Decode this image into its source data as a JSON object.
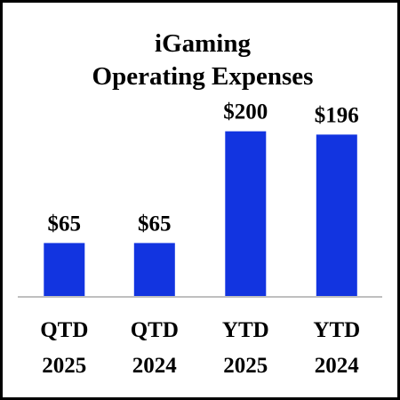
{
  "chart_data": {
    "type": "bar",
    "title_lines": [
      "iGaming",
      "Operating Expenses"
    ],
    "categories": [
      [
        "QTD",
        "2025"
      ],
      [
        "QTD",
        "2024"
      ],
      [
        "YTD",
        "2025"
      ],
      [
        "YTD",
        "2024"
      ]
    ],
    "values": [
      65,
      65,
      200,
      196
    ],
    "value_labels": [
      "$65",
      "$65",
      "$200",
      "$196"
    ],
    "ylim": [
      0,
      205
    ],
    "bar_color": "#1234e0",
    "axis_color": "#bfbfbf",
    "grid": false,
    "legend": "none"
  }
}
